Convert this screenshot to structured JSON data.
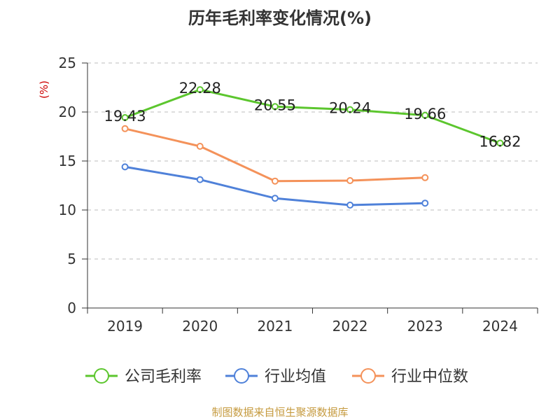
{
  "chart_data": {
    "type": "line",
    "title": "历年毛利率变化情况(%)",
    "ylabel": "(%)",
    "xlabel": "",
    "ylim": [
      0,
      25
    ],
    "yticks": [
      0,
      5,
      10,
      15,
      20,
      25
    ],
    "categories": [
      "2019",
      "2020",
      "2021",
      "2022",
      "2023",
      "2024"
    ],
    "grid": true,
    "legend_position": "bottom",
    "series": [
      {
        "name": "公司毛利率",
        "color": "#5cc62e",
        "labeled": true,
        "values": [
          19.43,
          22.28,
          20.55,
          20.24,
          19.66,
          16.82
        ]
      },
      {
        "name": "行业均值",
        "color": "#4f81d9",
        "labeled": false,
        "values": [
          14.4,
          13.1,
          11.2,
          10.5,
          10.7,
          null
        ]
      },
      {
        "name": "行业中位数",
        "color": "#f4925a",
        "labeled": false,
        "values": [
          18.3,
          16.5,
          12.95,
          13.0,
          13.3,
          null
        ]
      }
    ]
  },
  "footer": {
    "source": "制图数据来自恒生聚源数据库"
  }
}
